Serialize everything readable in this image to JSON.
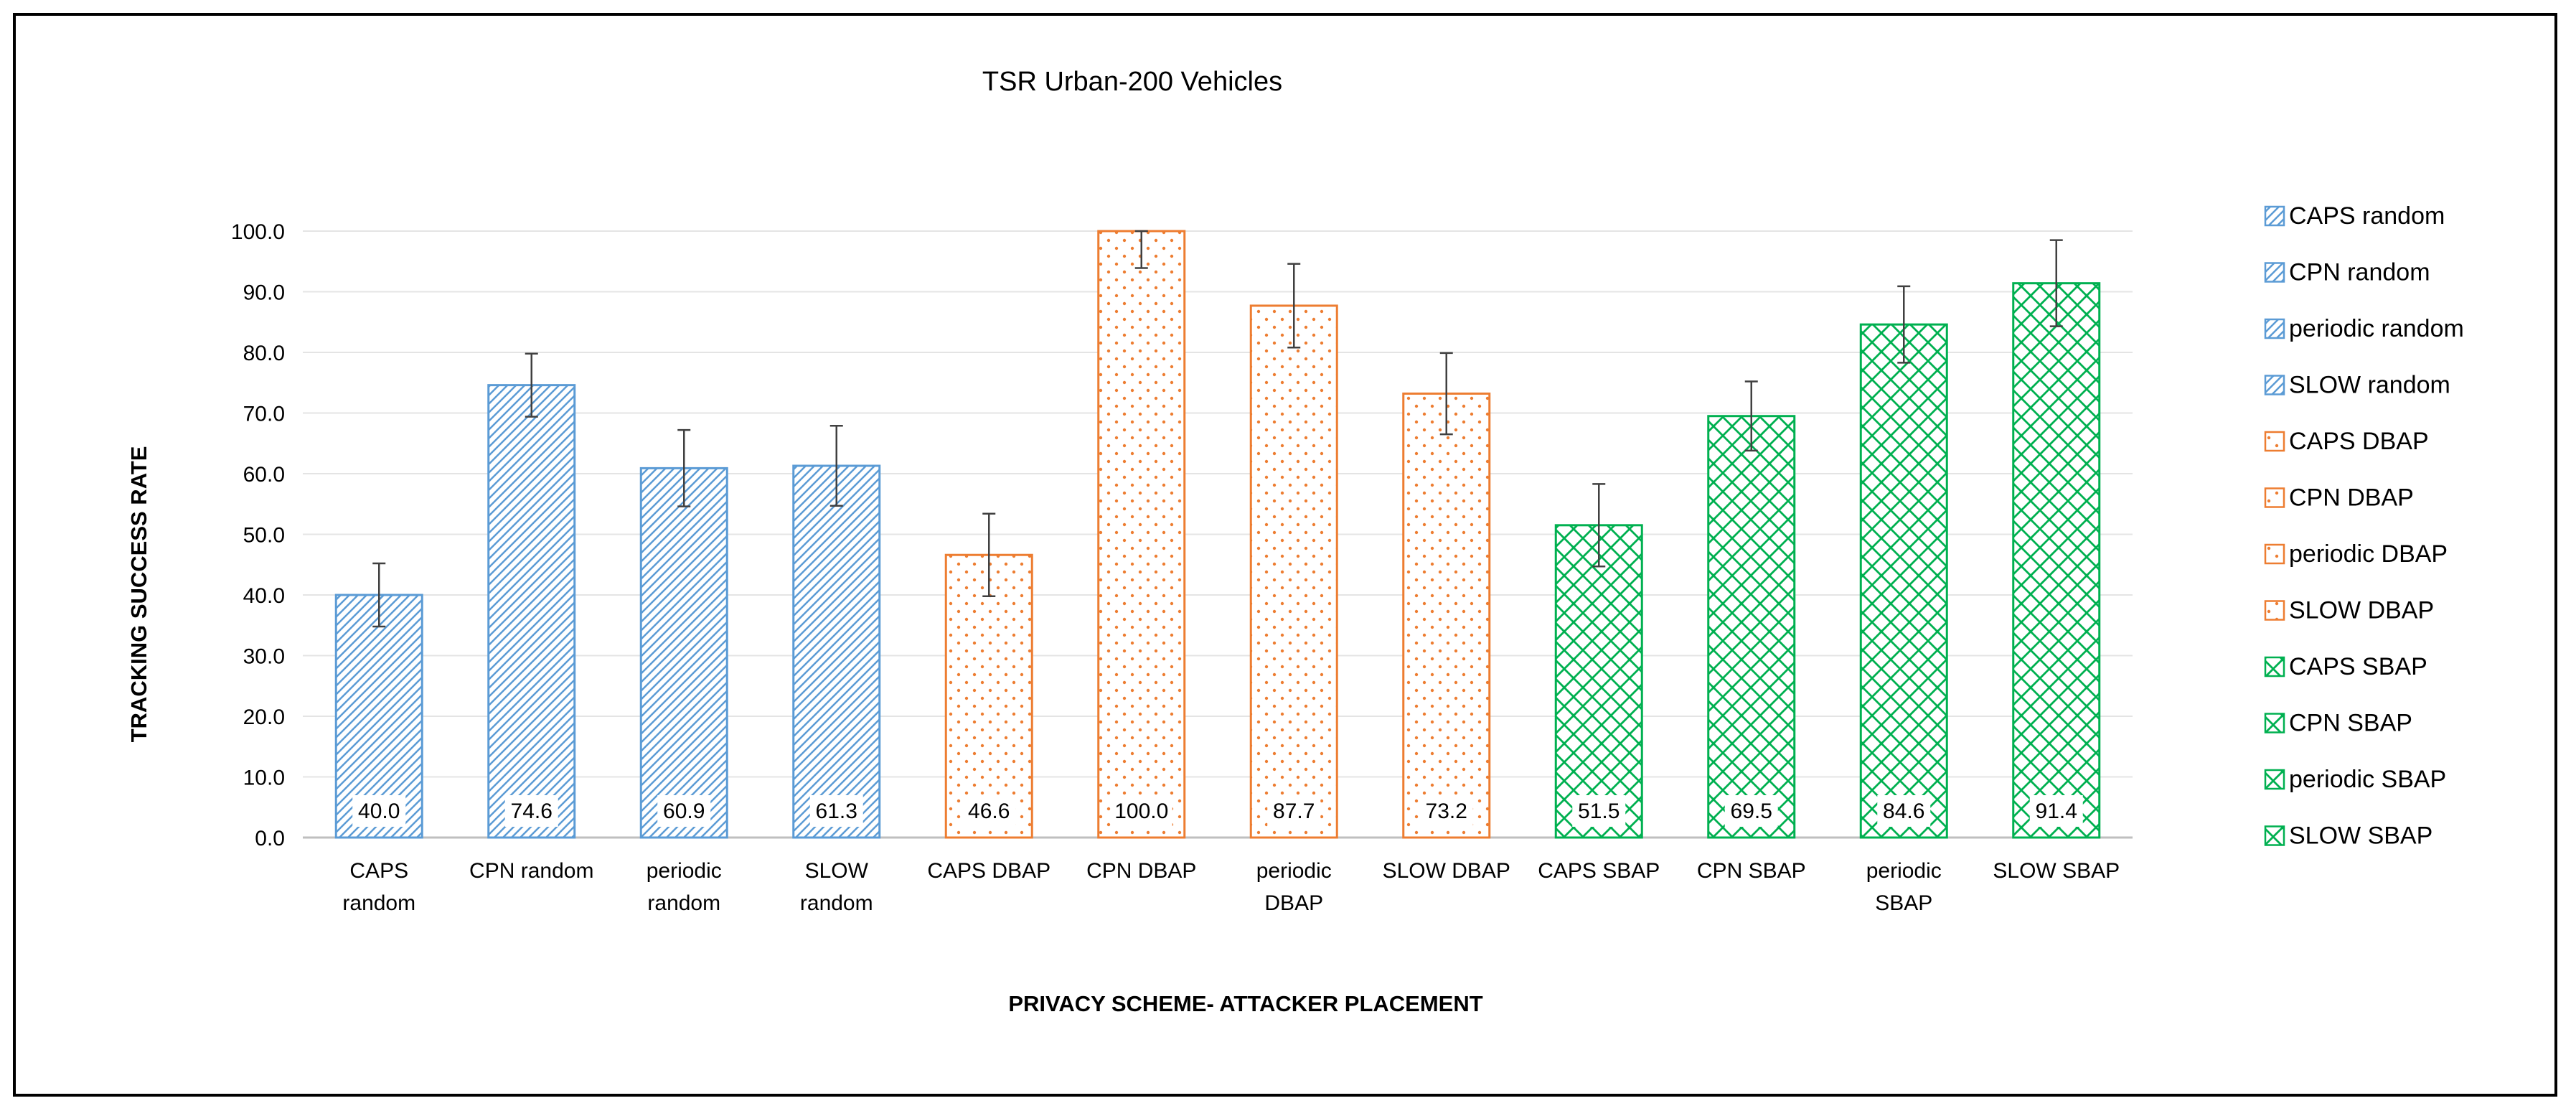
{
  "chart_data": {
    "type": "bar",
    "title": "TSR Urban-200 Vehicles",
    "xlabel": "PRIVACY SCHEME- ATTACKER PLACEMENT",
    "ylabel": "TRACKING SUCCESS RATE",
    "ylim": [
      0,
      100
    ],
    "yticks": [
      "0.0",
      "10.0",
      "20.0",
      "30.0",
      "40.0",
      "50.0",
      "60.0",
      "70.0",
      "80.0",
      "90.0",
      "100.0"
    ],
    "grid": true,
    "legend_position": "right",
    "categories": [
      "CAPS random",
      "CPN random",
      "periodic random",
      "SLOW random",
      "CAPS DBAP",
      "CPN DBAP",
      "periodic DBAP",
      "SLOW DBAP",
      "CAPS SBAP",
      "CPN SBAP",
      "periodic SBAP",
      "SLOW SBAP"
    ],
    "category_label_lines": [
      [
        "CAPS",
        "random"
      ],
      [
        "CPN random"
      ],
      [
        "periodic",
        "random"
      ],
      [
        "SLOW",
        "random"
      ],
      [
        "CAPS DBAP"
      ],
      [
        "CPN DBAP"
      ],
      [
        "periodic",
        "DBAP"
      ],
      [
        "SLOW DBAP"
      ],
      [
        "CAPS SBAP"
      ],
      [
        "CPN SBAP"
      ],
      [
        "periodic",
        "SBAP"
      ],
      [
        "SLOW SBAP"
      ]
    ],
    "values": [
      40.0,
      74.6,
      60.9,
      61.3,
      46.6,
      100.0,
      87.7,
      73.2,
      51.5,
      69.5,
      84.6,
      91.4
    ],
    "value_labels": [
      "40.0",
      "74.6",
      "60.9",
      "61.3",
      "46.6",
      "100.0",
      "87.7",
      "73.2",
      "51.5",
      "69.5",
      "84.6",
      "91.4"
    ],
    "error_low": [
      34.8,
      69.4,
      54.6,
      54.7,
      39.8,
      93.9,
      80.8,
      66.5,
      44.7,
      63.8,
      78.3,
      84.3
    ],
    "error_high": [
      45.2,
      79.8,
      67.2,
      67.9,
      53.4,
      100.0,
      94.6,
      79.9,
      58.3,
      75.2,
      90.9,
      98.5
    ],
    "groups": [
      {
        "name": "random",
        "color": "#5b9bd5",
        "pattern": "diagonal"
      },
      {
        "name": "DBAP",
        "color": "#ed7d31",
        "pattern": "dots"
      },
      {
        "name": "SBAP",
        "color": "#00b050",
        "pattern": "crosshatch"
      }
    ],
    "bar_group": [
      0,
      0,
      0,
      0,
      1,
      1,
      1,
      1,
      2,
      2,
      2,
      2
    ],
    "legend": [
      "CAPS random",
      "CPN random",
      "periodic random",
      "SLOW random",
      "CAPS DBAP",
      "CPN DBAP",
      "periodic DBAP",
      "SLOW DBAP",
      "CAPS SBAP",
      "CPN SBAP",
      "periodic SBAP",
      "SLOW SBAP"
    ]
  }
}
